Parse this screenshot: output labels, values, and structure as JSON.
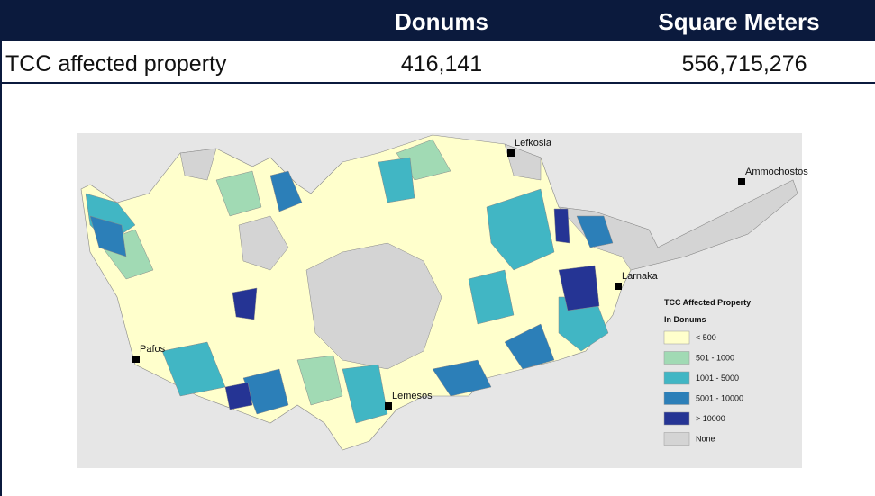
{
  "table": {
    "columns": [
      "Donums",
      "Square Meters"
    ],
    "rows": [
      [
        "TCC affected property",
        "416,141",
        "556,715,276"
      ]
    ]
  },
  "map": {
    "cities": [
      "Lefkosia",
      "Ammochostos",
      "Larnaka",
      "Pafos",
      "Lemesos"
    ],
    "legend": {
      "title": "TCC Affected Property",
      "subtitle": "In Donums",
      "items": [
        {
          "label": "< 500",
          "color": "#ffffcc"
        },
        {
          "label": "501 - 1000",
          "color": "#a1dab4"
        },
        {
          "label": "1001 - 5000",
          "color": "#41b6c4"
        },
        {
          "label": "5001 - 10000",
          "color": "#2c7fb8"
        },
        {
          "label": "> 10000",
          "color": "#253494"
        },
        {
          "label": "None",
          "color": "#d4d4d4"
        }
      ]
    }
  }
}
